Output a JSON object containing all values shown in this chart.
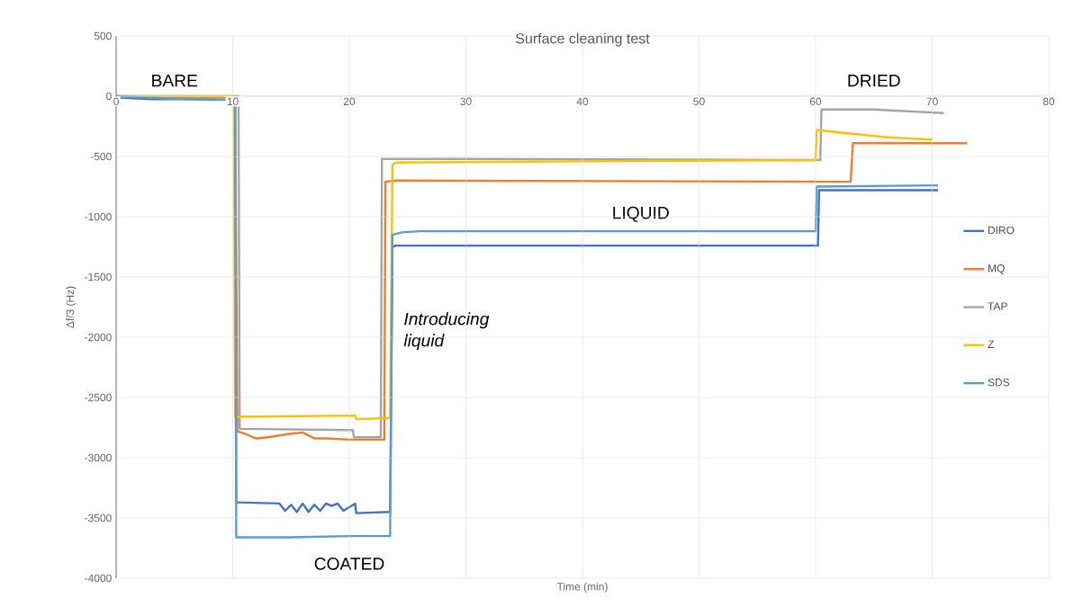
{
  "chart_data": {
    "type": "line",
    "title": "Surface cleaning test",
    "xlabel": "Time (min)",
    "ylabel": "Δf/3 (Hz)",
    "xlim": [
      0,
      80
    ],
    "xticks": [
      0,
      10,
      20,
      30,
      40,
      50,
      60,
      70,
      80
    ],
    "ylim": [
      -4000,
      500
    ],
    "yticks": [
      -4000,
      -3500,
      -3000,
      -2500,
      -2000,
      -1500,
      -1000,
      -500,
      0,
      500
    ],
    "grid": true,
    "legend": "right",
    "marker": "none",
    "line_style": "solid",
    "annotations": [
      "BARE",
      "COATED",
      "LIQUID",
      "DRIED",
      "*Introducing liquid*"
    ],
    "series": [
      {
        "name": "DIRO",
        "color": "#4472c4",
        "x": [
          0,
          3,
          6,
          10.2,
          10.3,
          10.4,
          14,
          14.5,
          15,
          15.5,
          16,
          16.5,
          17,
          17.5,
          18,
          18.5,
          19,
          19.5,
          20.5,
          20.6,
          23.5,
          23.7,
          24,
          60.2,
          60.3,
          70.5
        ],
        "values": [
          -10,
          -25,
          -25,
          -30,
          -3360,
          -3370,
          -3380,
          -3440,
          -3390,
          -3450,
          -3380,
          -3450,
          -3390,
          -3440,
          -3380,
          -3400,
          -3380,
          -3440,
          -3380,
          -3460,
          -3450,
          -1250,
          -1240,
          -1240,
          -780,
          -780
        ]
      },
      {
        "name": "MQ",
        "color": "#ed7d31",
        "x": [
          0,
          10.2,
          10.4,
          11,
          12,
          13,
          15,
          16,
          17,
          18,
          20,
          23,
          23.1,
          24,
          63,
          63.2,
          73
        ],
        "values": [
          0,
          -10,
          -2780,
          -2800,
          -2840,
          -2830,
          -2800,
          -2790,
          -2840,
          -2840,
          -2850,
          -2850,
          -710,
          -700,
          -710,
          -390,
          -390
        ]
      },
      {
        "name": "TAP",
        "color": "#a5a5a5",
        "x": [
          0,
          10.5,
          10.6,
          20.3,
          20.4,
          22.7,
          22.8,
          30,
          60.4,
          60.5,
          65,
          71
        ],
        "values": [
          0,
          0,
          -2760,
          -2770,
          -2830,
          -2830,
          -520,
          -520,
          -530,
          -110,
          -110,
          -140
        ]
      },
      {
        "name": "Z",
        "color": "#ffc000",
        "x": [
          0,
          10.1,
          10.2,
          20.5,
          20.6,
          23.5,
          23.7,
          24,
          40,
          60,
          60.1,
          62,
          66,
          70
        ],
        "values": [
          0,
          0,
          -2660,
          -2650,
          -2680,
          -2670,
          -570,
          -550,
          -540,
          -530,
          -280,
          -300,
          -340,
          -360
        ]
      },
      {
        "name": "SDS",
        "color": "#5b9bd5",
        "x": [
          0,
          5,
          10.2,
          10.3,
          15,
          20,
          23.5,
          23.7,
          24.5,
          26,
          60,
          60.1,
          70.5
        ],
        "values": [
          0,
          -20,
          -30,
          -3660,
          -3660,
          -3650,
          -3650,
          -1150,
          -1130,
          -1120,
          -1120,
          -750,
          -740
        ]
      }
    ]
  }
}
